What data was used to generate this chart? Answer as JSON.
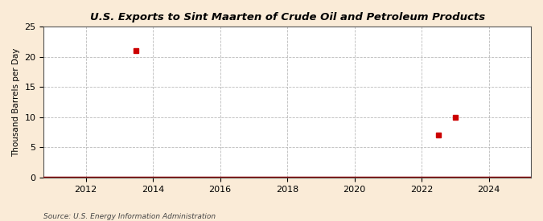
{
  "title": "U.S. Exports to Sint Maarten of Crude Oil and Petroleum Products",
  "ylabel": "Thousand Barrels per Day",
  "source": "Source: U.S. Energy Information Administration",
  "background_color": "#faebd7",
  "plot_bg_color": "#ffffff",
  "marker_color": "#cc0000",
  "bar_color": "#8b0000",
  "xlim": [
    2010.75,
    2025.25
  ],
  "ylim": [
    0,
    25
  ],
  "yticks": [
    0,
    5,
    10,
    15,
    20,
    25
  ],
  "xticks": [
    2012,
    2014,
    2016,
    2018,
    2020,
    2022,
    2024
  ],
  "data_x": [
    2013.5,
    2022.5,
    2023.0
  ],
  "data_y": [
    21,
    7,
    10
  ]
}
